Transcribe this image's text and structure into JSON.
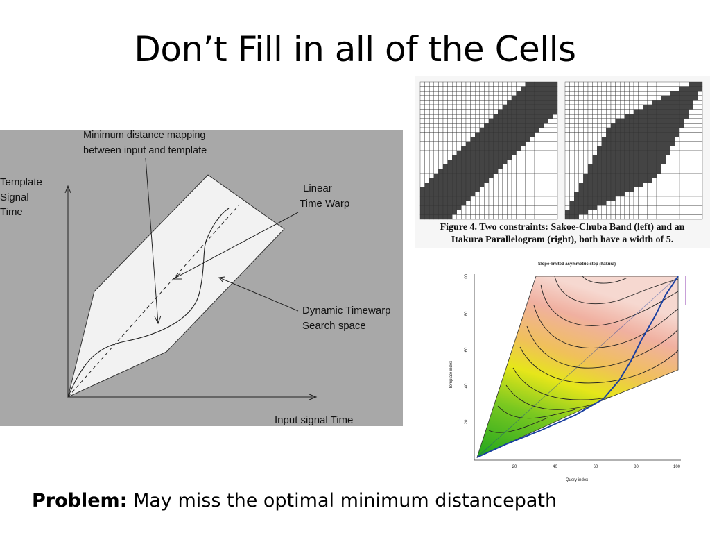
{
  "slide": {
    "title": "Don’t Fill in all of the Cells",
    "problem_label": "Problem:",
    "problem_text": "May miss the optimal minimum distancepath"
  },
  "left_diagram": {
    "annotation_mapping_line1": "Minimum distance mapping",
    "annotation_mapping_line2": "between input and template",
    "y_axis_line1": "Template",
    "y_axis_line2": "Signal",
    "y_axis_line3": "Time",
    "linear_line1": "Linear",
    "linear_line2": "Time Warp",
    "dtw_line1": "Dynamic Timewarp",
    "dtw_line2": "Search space",
    "x_axis": "Input signal Time"
  },
  "grid_figure": {
    "caption_line1": "Figure 4. Two constraints:  Sakoe-Chuba Band (left) and an",
    "caption_line2": "Itakura Parallelogram (right), both have a width of 5."
  },
  "contour_plot": {
    "title": "Slope-limited asymmetric step (Itakura)",
    "y_label": "Template index",
    "x_label": "Query index",
    "x_ticks": [
      "20",
      "40",
      "60",
      "80",
      "100"
    ],
    "y_ticks": [
      "20",
      "40",
      "60",
      "80",
      "100"
    ]
  },
  "colors": {
    "diagram_bg": "#a8a8a8",
    "search_space": "#f2f2f2",
    "grid_fill": "#444444",
    "path_line": "#1a3fa0"
  }
}
